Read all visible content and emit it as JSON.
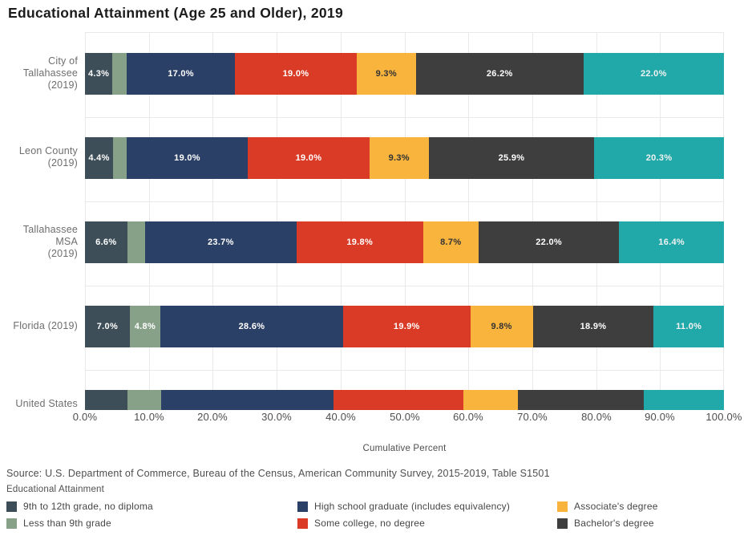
{
  "title": "Educational Attainment (Age 25 and Older), 2019",
  "source_note": "Source: U.S. Department of Commerce, Bureau of the Census, American Community Survey, 2015-2019, Table S1501",
  "x_axis": {
    "title": "Cumulative Percent",
    "tick_labels": [
      "0.0%",
      "10.0%",
      "20.0%",
      "30.0%",
      "40.0%",
      "50.0%",
      "60.0%",
      "70.0%",
      "80.0%",
      "90.0%",
      "100.0%"
    ]
  },
  "legend": {
    "title": "Educational Attainment",
    "items": [
      {
        "label": "9th to 12th grade, no diploma",
        "color": "#3d4e58"
      },
      {
        "label": "High school graduate (includes equivalency)",
        "color": "#2b4066"
      },
      {
        "label": "Associate's degree",
        "color": "#f9b43d"
      },
      {
        "label": "Less than 9th grade",
        "color": "#87a189"
      },
      {
        "label": "Some college, no degree",
        "color": "#da3b27"
      },
      {
        "label": "Bachelor's degree",
        "color": "#3e3e3e"
      }
    ]
  },
  "chart_data": {
    "type": "bar",
    "variant": "horizontal_stacked",
    "xlabel": "Cumulative Percent",
    "xlim": [
      0,
      100
    ],
    "unit": "percent",
    "grid": true,
    "segment_names": [
      "9th to 12th grade, no diploma",
      "Less than 9th grade",
      "High school graduate (includes equivalency)",
      "Some college, no degree",
      "Associate's degree",
      "Bachelor's degree",
      ""
    ],
    "segment_colors": [
      "#3d4e58",
      "#87a189",
      "#2b4066",
      "#da3b27",
      "#f9b43d",
      "#3e3e3e",
      "#21a8a8"
    ],
    "segment_label_text_colors": [
      "#ffffff",
      "#ffffff",
      "#ffffff",
      "#ffffff",
      "#333333",
      "#ffffff",
      "#f2f2f2"
    ],
    "rows": [
      {
        "label_lines": [
          "City of Tallahassee",
          "(2019)"
        ],
        "values": [
          4.3,
          2.2,
          17.0,
          19.0,
          9.3,
          26.2,
          22.0
        ],
        "value_labels": [
          "4.3%",
          "",
          "17.0%",
          "19.0%",
          "9.3%",
          "26.2%",
          "22.0%"
        ]
      },
      {
        "label_lines": [
          "Leon County",
          "(2019)"
        ],
        "values": [
          4.4,
          2.1,
          19.0,
          19.0,
          9.3,
          25.9,
          20.3
        ],
        "value_labels": [
          "4.4%",
          "",
          "19.0%",
          "19.0%",
          "9.3%",
          "25.9%",
          "20.3%"
        ]
      },
      {
        "label_lines": [
          "Tallahassee MSA",
          "(2019)"
        ],
        "values": [
          6.6,
          2.8,
          23.7,
          19.8,
          8.7,
          22.0,
          16.4
        ],
        "value_labels": [
          "6.6%",
          "",
          "23.7%",
          "19.8%",
          "8.7%",
          "22.0%",
          "16.4%"
        ]
      },
      {
        "label_lines": [
          "Florida (2019)"
        ],
        "values": [
          7.0,
          4.8,
          28.6,
          19.9,
          9.8,
          18.9,
          11.0
        ],
        "value_labels": [
          "7.0%",
          "4.8%",
          "28.6%",
          "19.9%",
          "9.8%",
          "18.9%",
          "11.0%"
        ]
      },
      {
        "label_lines": [
          "United States",
          ""
        ],
        "values": [
          6.6,
          5.3,
          27.0,
          20.3,
          8.5,
          19.8,
          12.5
        ],
        "value_labels": [
          "",
          "",
          "",
          "",
          "",
          "",
          ""
        ]
      }
    ]
  }
}
